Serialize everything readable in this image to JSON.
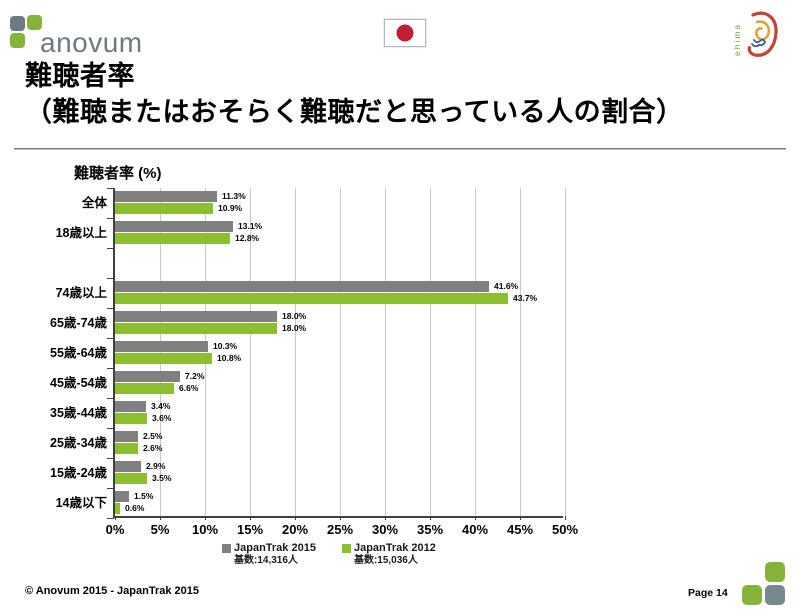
{
  "header": {
    "anovum_text": "anovum",
    "ehima_text": "ehima"
  },
  "title": {
    "line1": "難聴者率",
    "line2": "（難聴またはおそらく難聴だと思っている人の割合）"
  },
  "chart_data": {
    "type": "bar",
    "orientation": "horizontal",
    "title": "難聴者率 (%)",
    "categories": [
      "全体",
      "18歳以上",
      "74歳以上",
      "65歳-74歳",
      "55歳-64歳",
      "45歳-54歳",
      "35歳-44歳",
      "25歳-34歳",
      "15歳-24歳",
      "14歳以下"
    ],
    "gap_after_index": 1,
    "series": [
      {
        "name": "JapanTrak 2015",
        "base": "基数:14,316人",
        "color": "#808080",
        "values": [
          11.3,
          13.1,
          41.6,
          18.0,
          10.3,
          7.2,
          3.4,
          2.5,
          2.9,
          1.5
        ],
        "labels": [
          "11.3%",
          "13.1%",
          "41.6%",
          "18.0%",
          "10.3%",
          "7.2%",
          "3.4%",
          "2.5%",
          "2.9%",
          "1.5%"
        ]
      },
      {
        "name": "JapanTrak 2012",
        "base": "基数:15,036人",
        "color": "#8cbe2f",
        "values": [
          10.9,
          12.8,
          43.7,
          18.0,
          10.8,
          6.6,
          3.6,
          2.6,
          3.5,
          0.6
        ],
        "labels": [
          "10.9%",
          "12.8%",
          "43.7%",
          "18.0%",
          "10.8%",
          "6.6%",
          "3.6%",
          "2.6%",
          "3.5%",
          "0.6%"
        ]
      }
    ],
    "xlim": [
      0,
      50
    ],
    "xticks": [
      "0%",
      "5%",
      "10%",
      "15%",
      "20%",
      "25%",
      "30%",
      "35%",
      "40%",
      "45%",
      "50%"
    ],
    "grid": true,
    "legend_position": "bottom"
  },
  "footer": {
    "copyright": "© Anovum 2015 - JapanTrak 2015",
    "page": "Page 14"
  },
  "colors": {
    "bar_gray": "#808080",
    "bar_green": "#8cbe2f",
    "logo_gray": "#6e7a80",
    "logo_green": "#85b43a",
    "flag_red": "#c02036",
    "ear_red": "#c24434",
    "ear_orange": "#e2a23a",
    "ear_blue": "#3a5ba0",
    "ear_text_green": "#7a9c3e",
    "footer_sq_green": "#85b43a",
    "footer_sq_gray": "#76898f"
  }
}
